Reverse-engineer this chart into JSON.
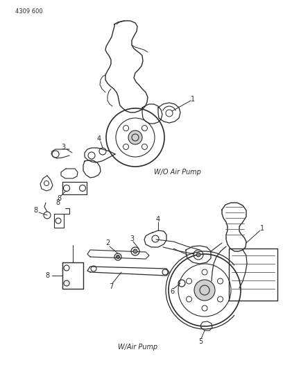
{
  "page_number": "4309 600",
  "background_color": "#ffffff",
  "line_color": "#2a2a2a",
  "top_label": "W/O Air Pump",
  "bottom_label": "W/Air Pump",
  "figsize": [
    4.08,
    5.33
  ],
  "dpi": 100
}
